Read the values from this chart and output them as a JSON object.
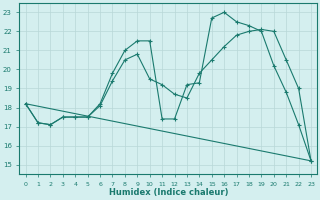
{
  "xlabel": "Humidex (Indice chaleur)",
  "bg_color": "#d4efef",
  "grid_color": "#b8d8d8",
  "line_color": "#1a7a6e",
  "xlim": [
    -0.5,
    23.5
  ],
  "ylim": [
    14.5,
    23.5
  ],
  "xticks": [
    0,
    1,
    2,
    3,
    4,
    5,
    6,
    7,
    8,
    9,
    10,
    11,
    12,
    13,
    14,
    15,
    16,
    17,
    18,
    19,
    20,
    21,
    22,
    23
  ],
  "yticks": [
    15,
    16,
    17,
    18,
    19,
    20,
    21,
    22,
    23
  ],
  "lines": [
    {
      "x": [
        0,
        1,
        2,
        3,
        4,
        5,
        6,
        7,
        8,
        9,
        10,
        11,
        12,
        13,
        14,
        15,
        16,
        17,
        18,
        19,
        20,
        21,
        22,
        23
      ],
      "y": [
        18.2,
        17.2,
        17.1,
        17.5,
        17.5,
        17.5,
        18.2,
        19.8,
        21.0,
        21.5,
        21.5,
        17.4,
        17.4,
        19.2,
        19.3,
        22.7,
        23.0,
        22.5,
        22.3,
        22.0,
        20.2,
        18.8,
        17.1,
        15.2
      ],
      "marker": true
    },
    {
      "x": [
        0,
        1,
        2,
        3,
        4,
        5,
        6,
        7,
        8,
        9,
        10,
        11,
        12,
        13,
        14,
        15,
        16,
        17,
        18,
        19,
        20,
        21,
        22,
        23
      ],
      "y": [
        18.2,
        17.2,
        17.1,
        17.5,
        17.5,
        17.5,
        18.1,
        19.4,
        20.5,
        20.8,
        19.5,
        19.2,
        18.7,
        18.5,
        19.8,
        20.5,
        21.2,
        21.8,
        22.0,
        22.1,
        22.0,
        20.5,
        19.0,
        15.2
      ],
      "marker": true
    },
    {
      "x": [
        0,
        23
      ],
      "y": [
        18.2,
        15.2
      ],
      "marker": false
    }
  ]
}
